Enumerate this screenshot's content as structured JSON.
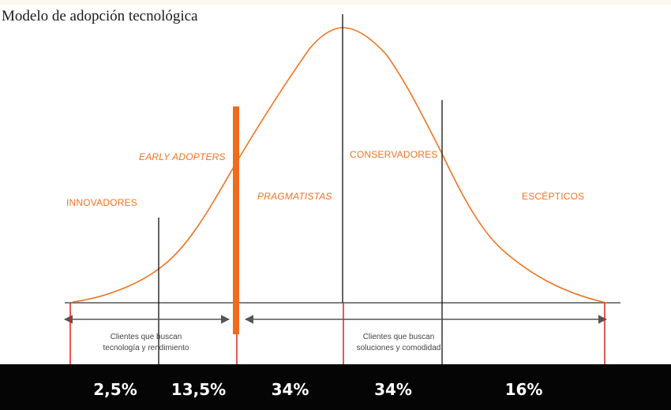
{
  "title": "Modelo de adopción tecnológica",
  "categories": [
    {
      "label": "INNOVADORES",
      "italic": false
    },
    {
      "label": "EARLY ADOPTERS",
      "italic": true
    },
    {
      "label": "PRAGMATISTAS",
      "italic": true
    },
    {
      "label": "CONSERVADORES",
      "italic": false
    },
    {
      "label": "ESCÉPTICOS",
      "italic": false
    }
  ],
  "notes": {
    "left": {
      "line1": "Clientes que buscan",
      "line2": "tecnología y rendimiento"
    },
    "right": {
      "line1": "Clientes que buscan",
      "line2": "soluciones y comodidad"
    }
  },
  "segments": [
    {
      "label": "2,5%",
      "share_percent": 2.5
    },
    {
      "label": "13,5%",
      "share_percent": 13.5
    },
    {
      "label": "34%",
      "share_percent": 34
    },
    {
      "label": "34%",
      "share_percent": 34
    },
    {
      "label": "16%",
      "share_percent": 16
    }
  ],
  "colors": {
    "curve": "#f07321",
    "chasm": "#f26a1b",
    "divider": "#111111",
    "baseline": "#555555",
    "segment_border": "#e0211d",
    "bottom_bar": "#050505",
    "segment_text": "#ffffff"
  }
}
